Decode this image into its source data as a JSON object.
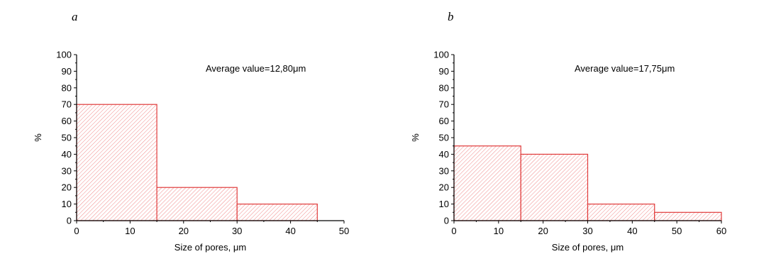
{
  "panels": [
    {
      "letter": "a"
    },
    {
      "letter": "b"
    }
  ],
  "colors": {
    "bar_edge": "#e03a3a",
    "hatch": "#f08a8a",
    "axis": "#000000"
  },
  "chart_data": [
    {
      "type": "bar",
      "title": "",
      "xlabel": "Size of pores, μm",
      "ylabel": "%",
      "annotation": "Average value=12,80μm",
      "xlim": [
        0,
        50
      ],
      "ylim": [
        0,
        100
      ],
      "xticks": [
        0,
        10,
        20,
        30,
        40,
        50
      ],
      "yticks": [
        0,
        10,
        20,
        30,
        40,
        50,
        60,
        70,
        80,
        90,
        100
      ],
      "bins": [
        {
          "x0": 0,
          "x1": 15,
          "value": 70
        },
        {
          "x0": 15,
          "x1": 30,
          "value": 20
        },
        {
          "x0": 30,
          "x1": 45,
          "value": 10
        }
      ]
    },
    {
      "type": "bar",
      "title": "",
      "xlabel": "Size of pores, μm",
      "ylabel": "%",
      "annotation": "Average value=17,75μm",
      "xlim": [
        0,
        60
      ],
      "ylim": [
        0,
        100
      ],
      "xticks": [
        0,
        10,
        20,
        30,
        40,
        50,
        60
      ],
      "yticks": [
        0,
        10,
        20,
        30,
        40,
        50,
        60,
        70,
        80,
        90,
        100
      ],
      "bins": [
        {
          "x0": 0,
          "x1": 15,
          "value": 45
        },
        {
          "x0": 15,
          "x1": 30,
          "value": 40
        },
        {
          "x0": 30,
          "x1": 45,
          "value": 10
        },
        {
          "x0": 45,
          "x1": 60,
          "value": 5
        }
      ]
    }
  ]
}
